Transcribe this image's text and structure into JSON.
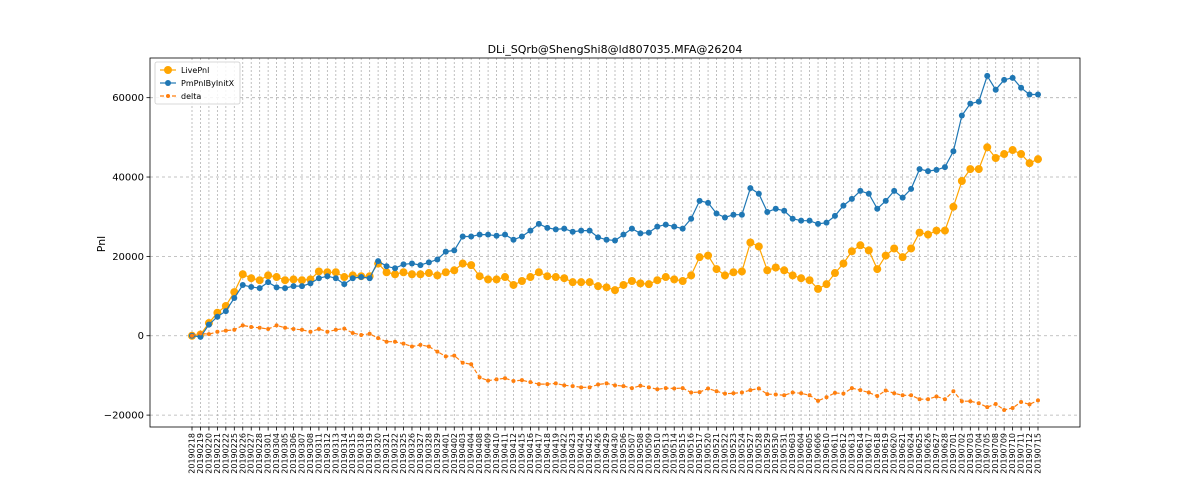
{
  "chart_data": {
    "type": "line",
    "title": "DLi_SQrb@ShengShi8@ld807035.MFA@26204",
    "xlabel": "",
    "ylabel": "Pnl",
    "ylim": [
      -23000,
      70000
    ],
    "yticks": [
      -20000,
      0,
      20000,
      40000,
      60000
    ],
    "ytick_labels": [
      "−20000",
      "0",
      "20000",
      "40000",
      "60000"
    ],
    "grid": true,
    "legend": "top-left",
    "categories": [
      "20190218",
      "20190219",
      "20190220",
      "20190221",
      "20190222",
      "20190225",
      "20190226",
      "20190227",
      "20190228",
      "20190301",
      "20190304",
      "20190305",
      "20190306",
      "20190307",
      "20190308",
      "20190311",
      "20190312",
      "20190313",
      "20190314",
      "20190315",
      "20190318",
      "20190319",
      "20190320",
      "20190321",
      "20190322",
      "20190325",
      "20190326",
      "20190327",
      "20190328",
      "20190329",
      "20190401",
      "20190402",
      "20190403",
      "20190404",
      "20190408",
      "20190409",
      "20190410",
      "20190411",
      "20190412",
      "20190415",
      "20190416",
      "20190417",
      "20190418",
      "20190419",
      "20190422",
      "20190423",
      "20190424",
      "20190425",
      "20190426",
      "20190429",
      "20190430",
      "20190506",
      "20190507",
      "20190508",
      "20190509",
      "20190510",
      "20190513",
      "20190514",
      "20190515",
      "20190516",
      "20190517",
      "20190520",
      "20190521",
      "20190522",
      "20190523",
      "20190524",
      "20190527",
      "20190528",
      "20190529",
      "20190530",
      "20190531",
      "20190603",
      "20190604",
      "20190605",
      "20190606",
      "20190610",
      "20190611",
      "20190612",
      "20190613",
      "20190614",
      "20190617",
      "20190618",
      "20190619",
      "20190620",
      "20190621",
      "20190624",
      "20190625",
      "20190626",
      "20190627",
      "20190628",
      "20190701",
      "20190702",
      "20190703",
      "20190704",
      "20190705",
      "20190708",
      "20190709",
      "20190710",
      "20190711",
      "20190712",
      "20190715"
    ],
    "series": [
      {
        "name": "LivePnl",
        "color": "#ffa500",
        "marker": "circle-large",
        "values": [
          0,
          300,
          3200,
          5800,
          7500,
          11000,
          15500,
          14500,
          14000,
          15200,
          14800,
          14000,
          14200,
          14000,
          14200,
          16200,
          16000,
          16000,
          14800,
          15200,
          15000,
          15000,
          18200,
          16000,
          15500,
          16000,
          15500,
          15500,
          15800,
          15200,
          16000,
          16500,
          18200,
          17800,
          15000,
          14200,
          14200,
          14800,
          12800,
          13800,
          14800,
          16000,
          15000,
          14800,
          14500,
          13500,
          13500,
          13500,
          12500,
          12200,
          11500,
          12800,
          13800,
          13200,
          13000,
          14000,
          14800,
          14200,
          13800,
          15200,
          19800,
          20200,
          16800,
          15200,
          16000,
          16200,
          23500,
          22500,
          16500,
          17200,
          16500,
          15200,
          14500,
          14000,
          11800,
          13000,
          15800,
          18200,
          21300,
          22800,
          21500,
          16800,
          20200,
          22000,
          19800,
          22000,
          26000,
          25500,
          26500,
          26500,
          32500,
          39000,
          42000,
          42000,
          47500,
          44800,
          45800,
          46800,
          45800,
          43500,
          44500
        ]
      },
      {
        "name": "PmPnlByInitX",
        "color": "#1f77b4",
        "marker": "circle",
        "values": [
          0,
          -300,
          2800,
          4800,
          6200,
          9500,
          12800,
          12300,
          12000,
          13500,
          12200,
          12000,
          12500,
          12500,
          13200,
          14500,
          15000,
          14500,
          13000,
          14500,
          14800,
          14500,
          18800,
          17500,
          17000,
          18000,
          18200,
          17800,
          18500,
          19200,
          21200,
          21500,
          25000,
          25000,
          25500,
          25500,
          25200,
          25500,
          24200,
          25000,
          26500,
          28200,
          27200,
          26800,
          27000,
          26200,
          26500,
          26500,
          24800,
          24200,
          24000,
          25500,
          27000,
          25800,
          26000,
          27500,
          28000,
          27500,
          27000,
          29500,
          34000,
          33500,
          30800,
          29800,
          30500,
          30500,
          37200,
          35800,
          31200,
          32000,
          31500,
          29500,
          29000,
          29000,
          28200,
          28500,
          30200,
          32800,
          34500,
          36500,
          35800,
          32000,
          34000,
          36500,
          34800,
          37000,
          42000,
          41500,
          41800,
          42500,
          46500,
          55500,
          58500,
          59000,
          65500,
          62000,
          64500,
          65000,
          62500,
          60800,
          60800
        ]
      },
      {
        "name": "delta",
        "color": "#ff7f0e",
        "marker": "circle-small",
        "dashed": true,
        "values": [
          0,
          600,
          400,
          1000,
          1300,
          1500,
          2600,
          2200,
          2000,
          1700,
          2600,
          2000,
          1700,
          1500,
          1000,
          1700,
          1000,
          1500,
          1800,
          700,
          200,
          500,
          -600,
          -1500,
          -1500,
          -2000,
          -2700,
          -2300,
          -2700,
          -4000,
          -5200,
          -5000,
          -6800,
          -7200,
          -10500,
          -11300,
          -11000,
          -10700,
          -11400,
          -11200,
          -11700,
          -12200,
          -12200,
          -12000,
          -12500,
          -12700,
          -13000,
          -13000,
          -12300,
          -12000,
          -12500,
          -12700,
          -13200,
          -12600,
          -13000,
          -13500,
          -13200,
          -13300,
          -13200,
          -14300,
          -14200,
          -13300,
          -14000,
          -14600,
          -14500,
          -14300,
          -13700,
          -13300,
          -14700,
          -14800,
          -15000,
          -14300,
          -14500,
          -15000,
          -16400,
          -15500,
          -14400,
          -14600,
          -13200,
          -13700,
          -14300,
          -15200,
          -13800,
          -14500,
          -15000,
          -15000,
          -16000,
          -16000,
          -15300,
          -16000,
          -14000,
          -16500,
          -16500,
          -17000,
          -18000,
          -17200,
          -18700,
          -18200,
          -16700,
          -17300,
          -16300
        ]
      }
    ]
  }
}
